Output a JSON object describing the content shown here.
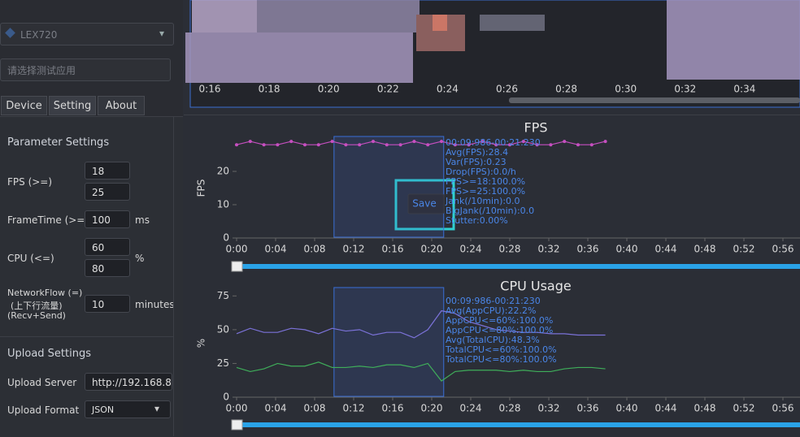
{
  "sidebar": {
    "device": "LEX720",
    "app_placeholder": "请选择测试应用",
    "tabs": [
      "Device",
      "Setting",
      "About"
    ],
    "parameter_settings": {
      "title": "Parameter Settings",
      "fps_label": "FPS (>=)",
      "fps_values": [
        "18",
        "25"
      ],
      "frametime_label": "FrameTime (>=)",
      "frametime_value": "100",
      "frametime_unit": "ms",
      "cpu_label": "CPU (<=)",
      "cpu_values": [
        "60",
        "80"
      ],
      "cpu_unit": "%",
      "network_label": [
        "NetworkFlow (=)",
        "(上下行流量)",
        "(Recv+Send)"
      ],
      "network_value": "10",
      "network_unit": "minutes"
    },
    "upload_settings": {
      "title": "Upload Settings",
      "server_label": "Upload Server",
      "server_value": "http://192.168.8",
      "format_label": "Upload Format",
      "format_value": "JSON"
    }
  },
  "timeline": {
    "ticks": [
      "0:16",
      "0:18",
      "0:20",
      "0:22",
      "0:24",
      "0:26",
      "0:28",
      "0:30",
      "0:32",
      "0:34"
    ]
  },
  "fps_chart": {
    "type": "line",
    "title": "FPS",
    "ylabel": "FPS",
    "x": [
      0,
      1.4,
      2.8,
      4.2,
      5.6,
      7,
      8.4,
      9.8,
      11.2,
      12.6,
      14,
      15.4,
      16.8,
      18.2,
      19.6,
      21,
      22.4,
      23.8,
      25.2,
      26.6,
      28,
      29.4,
      30.8,
      32.2,
      33.6,
      35,
      36.4,
      37.8
    ],
    "series": [
      {
        "color": "#c64fc0",
        "values": [
          28,
          29,
          28,
          28,
          29,
          28,
          28,
          29,
          28,
          28,
          29,
          28,
          28,
          29,
          28,
          29,
          28,
          28,
          29,
          28,
          28,
          29,
          28,
          28,
          29,
          28,
          28,
          29
        ]
      }
    ],
    "xlim": [
      0,
      57.75
    ],
    "ylim": [
      0,
      30
    ],
    "xticks": [
      {
        "value": 0,
        "label": "0:00"
      },
      {
        "value": 4,
        "label": "0:04"
      },
      {
        "value": 8,
        "label": "0:08"
      },
      {
        "value": 12,
        "label": "0:12"
      },
      {
        "value": 16,
        "label": "0:16"
      },
      {
        "value": 20,
        "label": "0:20"
      },
      {
        "value": 24,
        "label": "0:24"
      },
      {
        "value": 28,
        "label": "0:28"
      },
      {
        "value": 32,
        "label": "0:32"
      },
      {
        "value": 36,
        "label": "0:36"
      },
      {
        "value": 40,
        "label": "0:40"
      },
      {
        "value": 44,
        "label": "0:44"
      },
      {
        "value": 48,
        "label": "0:48"
      },
      {
        "value": 52,
        "label": "0:52"
      },
      {
        "value": 56,
        "label": "0:56"
      }
    ],
    "yticks": [
      0,
      10,
      20
    ],
    "selection": [
      9.986,
      21.23
    ],
    "tooltip": [
      "00:09:986-00:21:230",
      "Avg(FPS):28.4",
      "Var(FPS):0.23",
      "Drop(FPS):0.0/h",
      "FPS>=18:100.0%",
      "FPS>=25:100.0%",
      "Jank(/10min):0.0",
      "BigJank(/10min):0.0",
      "Stutter:0.00%"
    ],
    "button": "Save"
  },
  "cpu_chart": {
    "type": "line",
    "title": "CPU Usage",
    "ylabel": "%",
    "x": [
      0,
      1.4,
      2.8,
      4.2,
      5.6,
      7,
      8.4,
      9.8,
      11.2,
      12.6,
      14,
      15.4,
      16.8,
      18.2,
      19.6,
      21,
      22.4,
      23.8,
      25.2,
      26.6,
      28,
      29.4,
      30.8,
      32.2,
      33.6,
      35,
      36.4,
      37.8
    ],
    "series": [
      {
        "color": "#7b72d8",
        "values": [
          47,
          51,
          48,
          48,
          51,
          50,
          47,
          51,
          49,
          50,
          46,
          48,
          48,
          44,
          50,
          64,
          62,
          56,
          53,
          50,
          49,
          48,
          48,
          47,
          47,
          46,
          46,
          46
        ]
      },
      {
        "color": "#3fae5a",
        "values": [
          22,
          19,
          21,
          25,
          23,
          23,
          26,
          22,
          22,
          23,
          22,
          24,
          24,
          22,
          25,
          12,
          19,
          20,
          20,
          20,
          19,
          20,
          19,
          19,
          21,
          22,
          22,
          21
        ]
      }
    ],
    "xlim": [
      0,
      57.75
    ],
    "ylim": [
      0,
      80
    ],
    "xticks": [
      {
        "value": 0,
        "label": "0:00"
      },
      {
        "value": 4,
        "label": "0:04"
      },
      {
        "value": 8,
        "label": "0:08"
      },
      {
        "value": 12,
        "label": "0:12"
      },
      {
        "value": 16,
        "label": "0:16"
      },
      {
        "value": 20,
        "label": "0:20"
      },
      {
        "value": 24,
        "label": "0:24"
      },
      {
        "value": 28,
        "label": "0:28"
      },
      {
        "value": 32,
        "label": "0:32"
      },
      {
        "value": 36,
        "label": "0:36"
      },
      {
        "value": 40,
        "label": "0:40"
      },
      {
        "value": 44,
        "label": "0:44"
      },
      {
        "value": 48,
        "label": "0:48"
      },
      {
        "value": 52,
        "label": "0:52"
      },
      {
        "value": 56,
        "label": "0:56"
      }
    ],
    "yticks": [
      0,
      25,
      50,
      75
    ],
    "selection": [
      9.986,
      21.23
    ],
    "tooltip": [
      "00:09:986-00:21:230",
      "Avg(AppCPU):22.2%",
      "AppCPU<=60%:100.0%",
      "AppCPU<=80%:100.0%",
      "Avg(TotalCPU):48.3%",
      "TotalCPU<=60%:100.0%",
      "TotalCPU<=80%:100.0%"
    ]
  }
}
